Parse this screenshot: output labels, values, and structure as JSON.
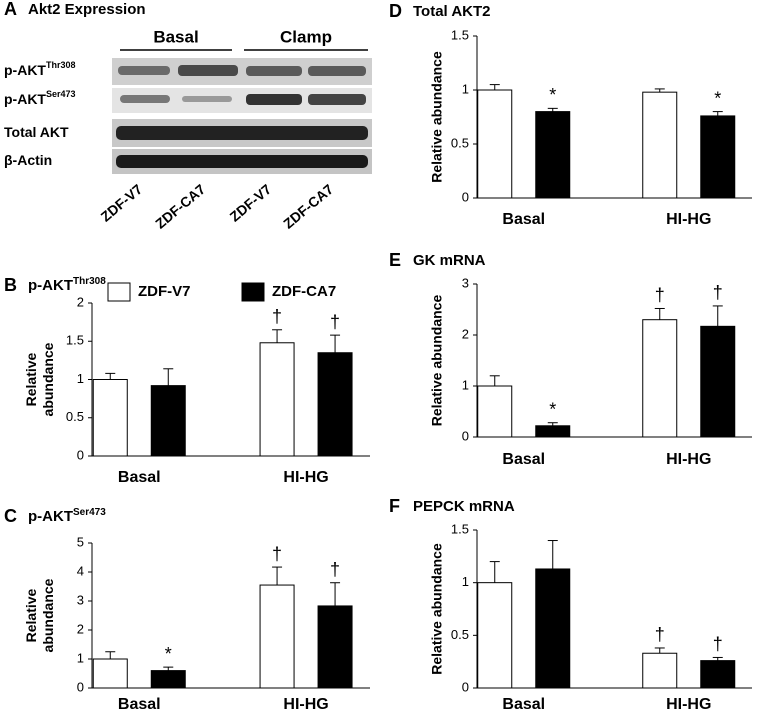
{
  "blot": {
    "panel": "A",
    "title": "Akt2 Expression",
    "groups": [
      "Basal",
      "Clamp"
    ],
    "rows": [
      {
        "label": "p-AKT",
        "superscript": "Thr308"
      },
      {
        "label": "p-AKT",
        "superscript": "Ser473"
      },
      {
        "label": "Total AKT"
      },
      {
        "label": "β-Actin"
      }
    ],
    "lanes": [
      "ZDF-V7",
      "ZDF-CA7",
      "ZDF-V7",
      "ZDF-CA7"
    ]
  },
  "chart_data": [
    {
      "type": "bar",
      "panel": "B",
      "title": "p-AKT",
      "title_superscript": "Thr308",
      "ylabel": "Relative abundance",
      "categories": [
        "Basal",
        "HI-HG"
      ],
      "ylim": [
        0,
        2
      ],
      "yticks": [
        0,
        0.5,
        1,
        1.5,
        2
      ],
      "legend": true,
      "series": [
        {
          "name": "ZDF-V7",
          "color": "#ffffff",
          "values": [
            1.0,
            1.48
          ],
          "errors": [
            0.08,
            0.17
          ],
          "annotations": [
            null,
            "†"
          ]
        },
        {
          "name": "ZDF-CA7",
          "color": "#000000",
          "values": [
            0.92,
            1.35
          ],
          "errors": [
            0.22,
            0.23
          ],
          "annotations": [
            null,
            "†"
          ]
        }
      ]
    },
    {
      "type": "bar",
      "panel": "C",
      "title": "p-AKT",
      "title_superscript": "Ser473",
      "ylabel": "Relative abundance",
      "categories": [
        "Basal",
        "HI-HG"
      ],
      "ylim": [
        0,
        5
      ],
      "yticks": [
        0,
        1,
        2,
        3,
        4,
        5
      ],
      "legend": false,
      "series": [
        {
          "color": "#ffffff",
          "values": [
            1.0,
            3.55
          ],
          "errors": [
            0.25,
            0.62
          ],
          "annotations": [
            null,
            "†"
          ]
        },
        {
          "color": "#000000",
          "values": [
            0.6,
            2.83
          ],
          "errors": [
            0.12,
            0.8
          ],
          "annotations": [
            "*",
            "†"
          ]
        }
      ]
    },
    {
      "type": "bar",
      "panel": "D",
      "title": "Total AKT2",
      "ylabel": "Relative abundance",
      "categories": [
        "Basal",
        "HI-HG"
      ],
      "ylim": [
        0,
        1.5
      ],
      "yticks": [
        0,
        0.5,
        1,
        1.5
      ],
      "legend": false,
      "series": [
        {
          "color": "#ffffff",
          "values": [
            1.0,
            0.98
          ],
          "errors": [
            0.05,
            0.03
          ],
          "annotations": [
            null,
            null
          ]
        },
        {
          "color": "#000000",
          "values": [
            0.8,
            0.76
          ],
          "errors": [
            0.03,
            0.04
          ],
          "annotations": [
            "*",
            "*"
          ]
        }
      ]
    },
    {
      "type": "bar",
      "panel": "E",
      "title": "GK mRNA",
      "ylabel": "Relative abundance",
      "categories": [
        "Basal",
        "HI-HG"
      ],
      "ylim": [
        0,
        3
      ],
      "yticks": [
        0,
        1,
        2,
        3
      ],
      "legend": false,
      "series": [
        {
          "color": "#ffffff",
          "values": [
            1.0,
            2.3
          ],
          "errors": [
            0.2,
            0.22
          ],
          "annotations": [
            null,
            "†"
          ]
        },
        {
          "color": "#000000",
          "values": [
            0.22,
            2.17
          ],
          "errors": [
            0.06,
            0.4
          ],
          "annotations": [
            "*",
            "†"
          ]
        }
      ]
    },
    {
      "type": "bar",
      "panel": "F",
      "title": "PEPCK mRNA",
      "ylabel": "Relative abundance",
      "categories": [
        "Basal",
        "HI-HG"
      ],
      "ylim": [
        0,
        1.5
      ],
      "yticks": [
        0,
        0.5,
        1,
        1.5
      ],
      "legend": false,
      "series": [
        {
          "color": "#ffffff",
          "values": [
            1.0,
            0.33
          ],
          "errors": [
            0.2,
            0.05
          ],
          "annotations": [
            null,
            "†"
          ]
        },
        {
          "color": "#000000",
          "values": [
            1.13,
            0.26
          ],
          "errors": [
            0.27,
            0.03
          ],
          "annotations": [
            null,
            "†"
          ]
        }
      ]
    }
  ]
}
